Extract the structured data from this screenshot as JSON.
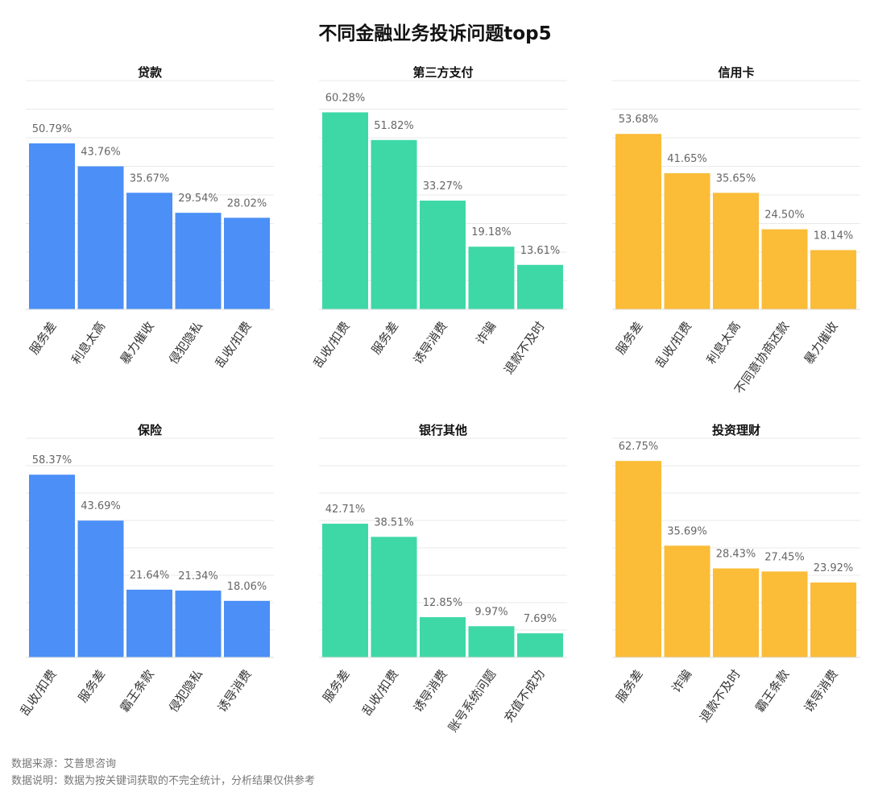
{
  "title": "不同金融业务投诉问题top5",
  "footer": {
    "source": "数据来源：艾普思咨询",
    "note": "数据说明：数据为按关键词获取的不完全统计，分析结果仅供参考"
  },
  "colors": {
    "blue": "#4B8FF7",
    "green": "#3ED8A6",
    "yellow": "#FBBC38"
  },
  "chart_data": [
    {
      "type": "bar",
      "title": "贷款",
      "color": "blue",
      "categories": [
        "服务差",
        "利息太高",
        "暴力催收",
        "侵犯隐私",
        "乱收/扣费"
      ],
      "values": [
        50.79,
        43.76,
        35.67,
        29.54,
        28.02
      ],
      "labels": [
        "50.79%",
        "43.76%",
        "35.67%",
        "29.54%",
        "28.02%"
      ],
      "ylim": [
        0,
        70
      ]
    },
    {
      "type": "bar",
      "title": "第三方支付",
      "color": "green",
      "categories": [
        "乱收/扣费",
        "服务差",
        "诱导消费",
        "诈骗",
        "退款不及时"
      ],
      "values": [
        60.28,
        51.82,
        33.27,
        19.18,
        13.61
      ],
      "labels": [
        "60.28%",
        "51.82%",
        "33.27%",
        "19.18%",
        "13.61%"
      ],
      "ylim": [
        0,
        70
      ]
    },
    {
      "type": "bar",
      "title": "信用卡",
      "color": "yellow",
      "categories": [
        "服务差",
        "乱收/扣费",
        "利息太高",
        "不同意协商还款",
        "暴力催收"
      ],
      "values": [
        53.68,
        41.65,
        35.65,
        24.5,
        18.14
      ],
      "labels": [
        "53.68%",
        "41.65%",
        "35.65%",
        "24.50%",
        "18.14%"
      ],
      "ylim": [
        0,
        70
      ]
    },
    {
      "type": "bar",
      "title": "保险",
      "color": "blue",
      "categories": [
        "乱收/扣费",
        "服务差",
        "霸王条款",
        "侵犯隐私",
        "诱导消费"
      ],
      "values": [
        58.37,
        43.69,
        21.64,
        21.34,
        18.06
      ],
      "labels": [
        "58.37%",
        "43.69%",
        "21.64%",
        "21.34%",
        "18.06%"
      ],
      "ylim": [
        0,
        70
      ]
    },
    {
      "type": "bar",
      "title": "银行其他",
      "color": "green",
      "categories": [
        "服务差",
        "乱收/扣费",
        "诱导消费",
        "账号系统问题",
        "充值不成功"
      ],
      "values": [
        42.71,
        38.51,
        12.85,
        9.97,
        7.69
      ],
      "labels": [
        "42.71%",
        "38.51%",
        "12.85%",
        "9.97%",
        "7.69%"
      ],
      "ylim": [
        0,
        70
      ]
    },
    {
      "type": "bar",
      "title": "投资理财",
      "color": "yellow",
      "categories": [
        "服务差",
        "诈骗",
        "退款不及时",
        "霸王条款",
        "诱导消费"
      ],
      "values": [
        62.75,
        35.69,
        28.43,
        27.45,
        23.92
      ],
      "labels": [
        "62.75%",
        "35.69%",
        "28.43%",
        "27.45%",
        "23.92%"
      ],
      "ylim": [
        0,
        70
      ]
    }
  ]
}
